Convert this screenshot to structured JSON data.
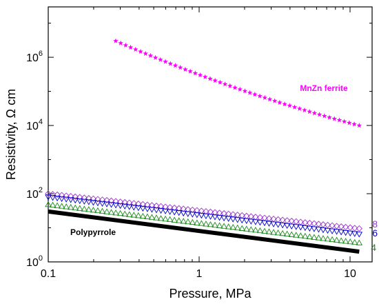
{
  "chart_data": {
    "type": "scatter",
    "title": "",
    "xlabel": "Pressure, MPa",
    "ylabel": "Resistivity, Ω cm",
    "xscale": "log",
    "yscale": "log",
    "xlim": [
      0.1,
      14
    ],
    "ylim": [
      1,
      30000000
    ],
    "x_ticks": [
      {
        "value": 0.1,
        "label": "0.1"
      },
      {
        "value": 1,
        "label": "1"
      },
      {
        "value": 10,
        "label": "10"
      }
    ],
    "y_ticks": [
      {
        "value": 1,
        "base": "10",
        "exp": "0"
      },
      {
        "value": 100,
        "base": "10",
        "exp": "2"
      },
      {
        "value": 10000,
        "base": "10",
        "exp": "4"
      },
      {
        "value": 1000000,
        "base": "10",
        "exp": "6"
      }
    ],
    "grid": false,
    "legend": "none",
    "series": [
      {
        "name": "MnZn ferrite",
        "label": "MnZn ferrite",
        "marker": "star",
        "color": "#ff00ff",
        "x_range": [
          0.28,
          11.5
        ],
        "y_range": [
          3000000,
          10000
        ],
        "points": 50
      },
      {
        "name": "8",
        "label": "8",
        "marker": "diamond-open",
        "color": "#9933cc",
        "x_range": [
          0.1,
          11.5
        ],
        "y_range": [
          100,
          9.5
        ],
        "points": 70
      },
      {
        "name": "6",
        "label": "6",
        "marker": "triangle-down-open",
        "color": "#0000cc",
        "x_range": [
          0.1,
          11.5
        ],
        "y_range": [
          80,
          6.5
        ],
        "points": 70
      },
      {
        "name": "4",
        "label": "4",
        "marker": "triangle-up-open",
        "color": "#1a8a1a",
        "x_range": [
          0.1,
          11.5
        ],
        "y_range": [
          48,
          3.6
        ],
        "points": 70
      },
      {
        "name": "Polypyrrole",
        "label": "Polypyrrole",
        "marker": "line",
        "color": "#000000",
        "x_range": [
          0.1,
          11.5
        ],
        "y_range": [
          30,
          2
        ],
        "points": 2
      }
    ]
  }
}
